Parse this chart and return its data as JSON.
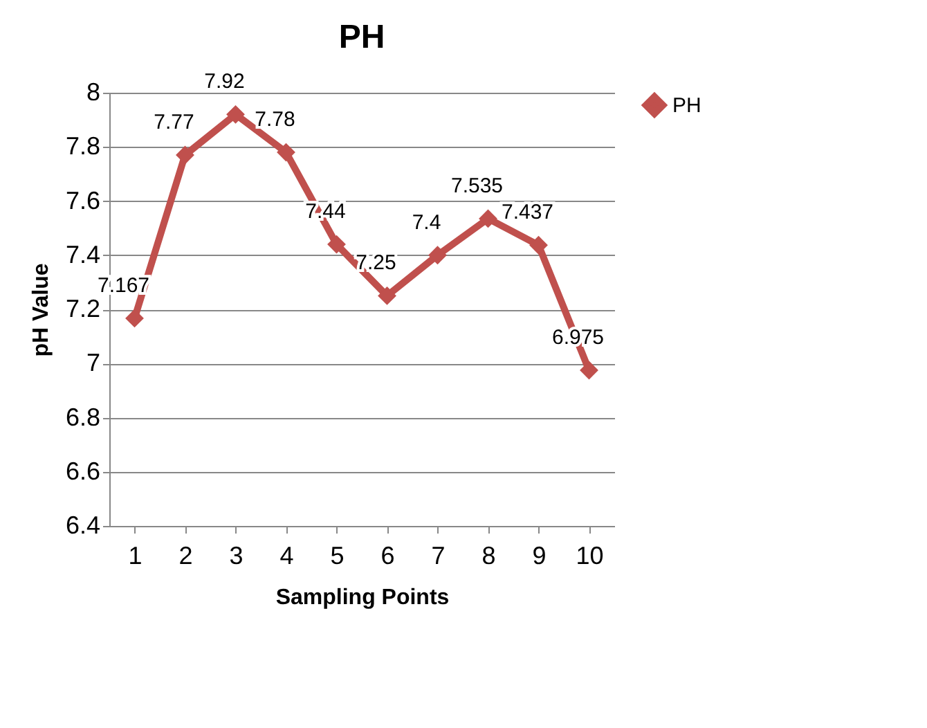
{
  "chart_data": {
    "type": "line",
    "title": "PH",
    "xlabel": "Sampling Points",
    "ylabel": "pH Value",
    "categories": [
      "1",
      "2",
      "3",
      "4",
      "5",
      "6",
      "7",
      "8",
      "9",
      "10"
    ],
    "series": [
      {
        "name": "PH",
        "color": "#c0504d",
        "values": [
          7.167,
          7.77,
          7.92,
          7.78,
          7.44,
          7.25,
          7.4,
          7.535,
          7.437,
          6.975
        ]
      }
    ],
    "ylim": [
      6.4,
      8
    ],
    "yticks": [
      6.4,
      6.6,
      6.8,
      7,
      7.2,
      7.4,
      7.6,
      7.8,
      8
    ],
    "grid": "y",
    "legend": "top right",
    "marker": "diamond",
    "data_labels": true
  }
}
